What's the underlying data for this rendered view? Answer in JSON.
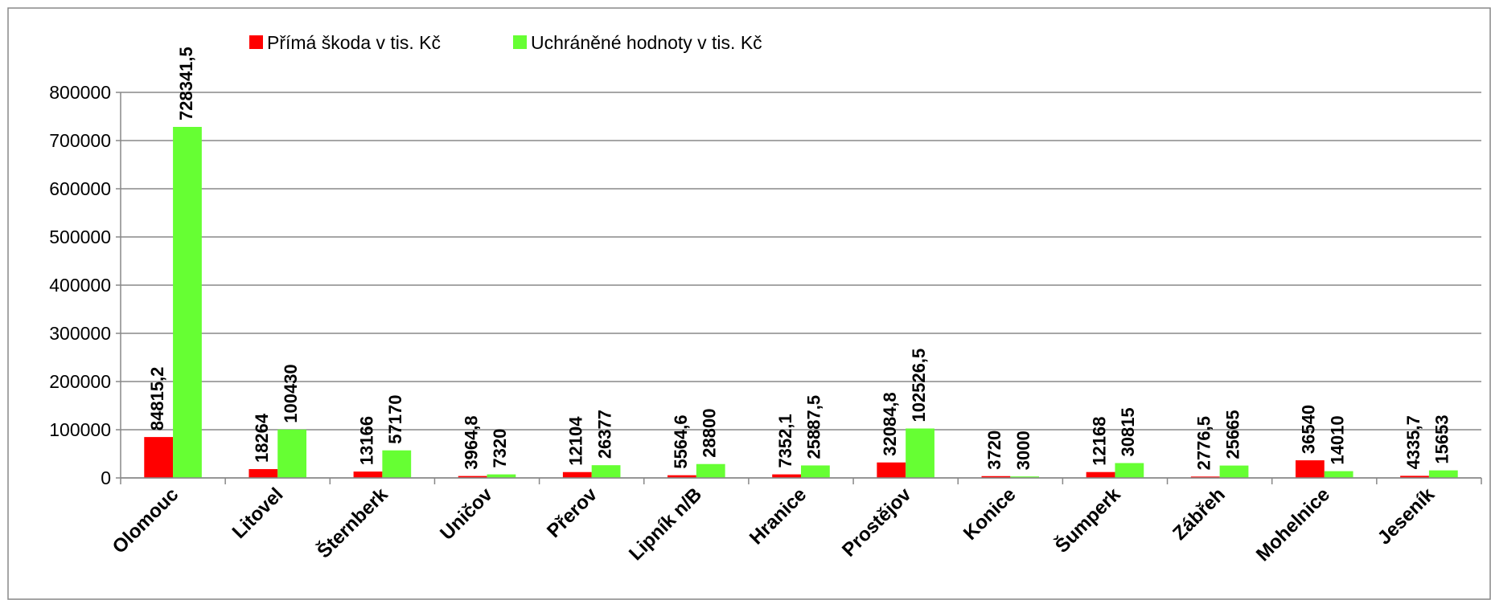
{
  "chart_data": {
    "type": "bar",
    "categories": [
      "Olomouc",
      "Litovel",
      "Šternberk",
      "Uničov",
      "Přerov",
      "Lipník n/B",
      "Hranice",
      "Prostějov",
      "Konice",
      "Šumperk",
      "Zábřeh",
      "Mohelnice",
      "Jeseník"
    ],
    "series": [
      {
        "name": "Přímá škoda v tis. Kč",
        "color": "#ff0000",
        "values": [
          84815.2,
          18264,
          13166,
          3964.8,
          12104,
          5564.6,
          7352.1,
          32084.8,
          3720,
          12168,
          2776.5,
          36540,
          4335.7
        ],
        "value_labels": [
          "84815,2",
          "18264",
          "13166",
          "3964,8",
          "12104",
          "5564,6",
          "7352,1",
          "32084,8",
          "3720",
          "12168",
          "2776,5",
          "36540",
          "4335,7"
        ]
      },
      {
        "name": "Uchráněné hodnoty v tis. Kč",
        "color": "#66ff33",
        "values": [
          728341.5,
          100430,
          57170,
          7320,
          26377,
          28800,
          25887.5,
          102526.5,
          3000,
          30815,
          25665,
          14010,
          15653
        ],
        "value_labels": [
          "728341,5",
          "100430",
          "57170",
          "7320",
          "26377",
          "28800",
          "25887,5",
          "102526,5",
          "3000",
          "30815",
          "25665",
          "14010",
          "15653"
        ]
      }
    ],
    "ylim": [
      0,
      800000
    ],
    "yticks": [
      0,
      100000,
      200000,
      300000,
      400000,
      500000,
      600000,
      700000,
      800000
    ],
    "grid": true,
    "legend": "top"
  }
}
